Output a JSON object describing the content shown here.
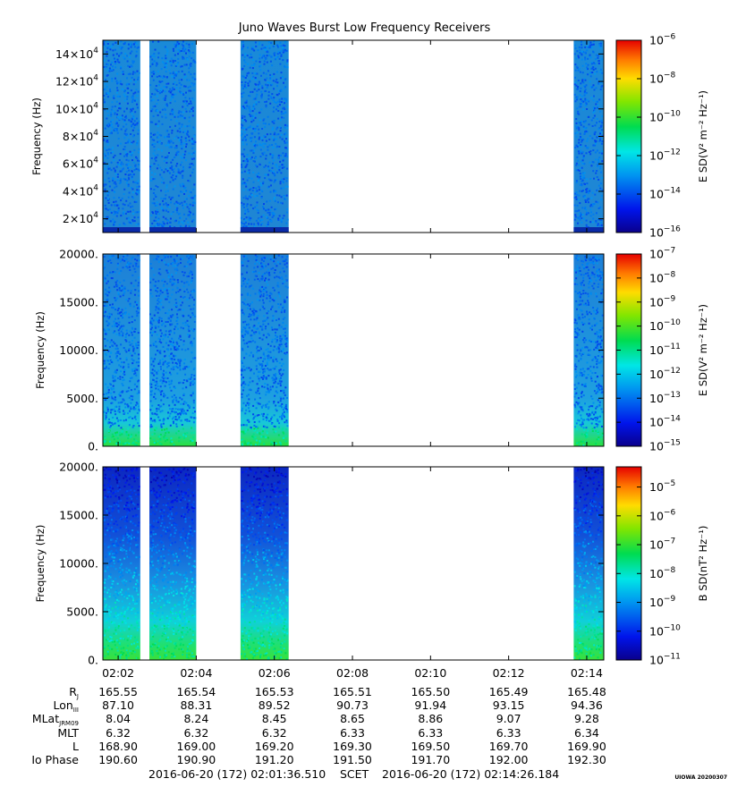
{
  "title": "Juno Waves Burst Low Frequency Receivers",
  "colors": {
    "bg_low": "#1e6fd8",
    "bg_mid": "#1aa8e8",
    "deep_blue": "#0a1ea8",
    "green_band": "#22dd44",
    "frame": "#000000"
  },
  "chart_data": [
    {
      "type": "heatmap",
      "name": "panel-1",
      "ylabel": "Frequency (Hz)",
      "ylim": [
        10000,
        150000
      ],
      "yticks": [
        {
          "v": 20000,
          "b": "2×10",
          "e": "4"
        },
        {
          "v": 40000,
          "b": "4×10",
          "e": "4"
        },
        {
          "v": 60000,
          "b": "6×10",
          "e": "4"
        },
        {
          "v": 80000,
          "b": "8×10",
          "e": "4"
        },
        {
          "v": 100000,
          "b": "10×10",
          "e": "4"
        },
        {
          "v": 120000,
          "b": "12×10",
          "e": "4"
        },
        {
          "v": 140000,
          "b": "14×10",
          "e": "4"
        }
      ],
      "colorbar": {
        "label": "E SD(V² m⁻² Hz⁻¹)",
        "range_exp": [
          -16,
          -6
        ],
        "ticks": [
          -6,
          -8,
          -10,
          -12,
          -14,
          -16
        ]
      },
      "data_intervals": [
        [
          "02:01:36",
          "02:02:34"
        ],
        [
          "02:02:48",
          "02:04:00"
        ],
        [
          "02:05:08",
          "02:06:22"
        ],
        [
          "02:13:40",
          "02:14:26"
        ]
      ],
      "style": "mid"
    },
    {
      "type": "heatmap",
      "name": "panel-2",
      "ylabel": "Frequency (Hz)",
      "ylim": [
        0,
        20000
      ],
      "yticks": [
        {
          "v": 0,
          "t": "0."
        },
        {
          "v": 5000,
          "t": "5000."
        },
        {
          "v": 10000,
          "t": "10000."
        },
        {
          "v": 15000,
          "t": "15000."
        },
        {
          "v": 20000,
          "t": "20000."
        }
      ],
      "colorbar": {
        "label": "E SD(V² m⁻² Hz⁻¹)",
        "range_exp": [
          -15,
          -7
        ],
        "ticks": [
          -7,
          -8,
          -9,
          -10,
          -11,
          -12,
          -13,
          -14,
          -15
        ]
      },
      "data_intervals": [
        [
          "02:01:36",
          "02:02:34"
        ],
        [
          "02:02:48",
          "02:04:00"
        ],
        [
          "02:05:08",
          "02:06:22"
        ],
        [
          "02:13:40",
          "02:14:26"
        ]
      ],
      "style": "green_bottom"
    },
    {
      "type": "heatmap",
      "name": "panel-3",
      "ylabel": "Frequency (Hz)",
      "ylim": [
        0,
        20000
      ],
      "yticks": [
        {
          "v": 0,
          "t": "0."
        },
        {
          "v": 5000,
          "t": "5000."
        },
        {
          "v": 10000,
          "t": "10000."
        },
        {
          "v": 15000,
          "t": "15000."
        },
        {
          "v": 20000,
          "t": "20000."
        }
      ],
      "colorbar": {
        "label": "B SD(nT² Hz⁻¹)",
        "range_exp": [
          -11,
          -4.3
        ],
        "ticks": [
          -5,
          -6,
          -7,
          -8,
          -9,
          -10,
          -11
        ]
      },
      "data_intervals": [
        [
          "02:01:36",
          "02:02:34"
        ],
        [
          "02:02:48",
          "02:04:00"
        ],
        [
          "02:05:08",
          "02:06:22"
        ],
        [
          "02:13:40",
          "02:14:26"
        ]
      ],
      "style": "blue_top"
    }
  ],
  "xaxis": {
    "start": "02:01:36.510",
    "end": "02:14:26.184",
    "ticks": [
      "02:02",
      "02:04",
      "02:06",
      "02:08",
      "02:10",
      "02:12",
      "02:14"
    ]
  },
  "ephemeris": [
    {
      "label": "R",
      "sub": "J",
      "values": [
        "165.55",
        "165.54",
        "165.53",
        "165.51",
        "165.50",
        "165.49",
        "165.48"
      ]
    },
    {
      "label": "Lon",
      "sub": "III",
      "values": [
        "87.10",
        "88.31",
        "89.52",
        "90.73",
        "91.94",
        "93.15",
        "94.36"
      ]
    },
    {
      "label": "MLat",
      "sub": "JRM09",
      "values": [
        "8.04",
        "8.24",
        "8.45",
        "8.65",
        "8.86",
        "9.07",
        "9.28"
      ]
    },
    {
      "label": "MLT",
      "sub": "",
      "values": [
        "6.32",
        "6.32",
        "6.32",
        "6.33",
        "6.33",
        "6.33",
        "6.34"
      ]
    },
    {
      "label": "L",
      "sub": "",
      "values": [
        "168.90",
        "169.00",
        "169.20",
        "169.30",
        "169.50",
        "169.70",
        "169.90"
      ]
    },
    {
      "label": "Io Phase",
      "sub": "",
      "values": [
        "190.60",
        "190.90",
        "191.20",
        "191.50",
        "191.70",
        "192.00",
        "192.30"
      ]
    }
  ],
  "footer": {
    "start": "2016-06-20 (172) 02:01:36.510",
    "scet": "SCET",
    "end": "2016-06-20 (172) 02:14:26.184"
  },
  "stamp": "UIOWA 20200307"
}
